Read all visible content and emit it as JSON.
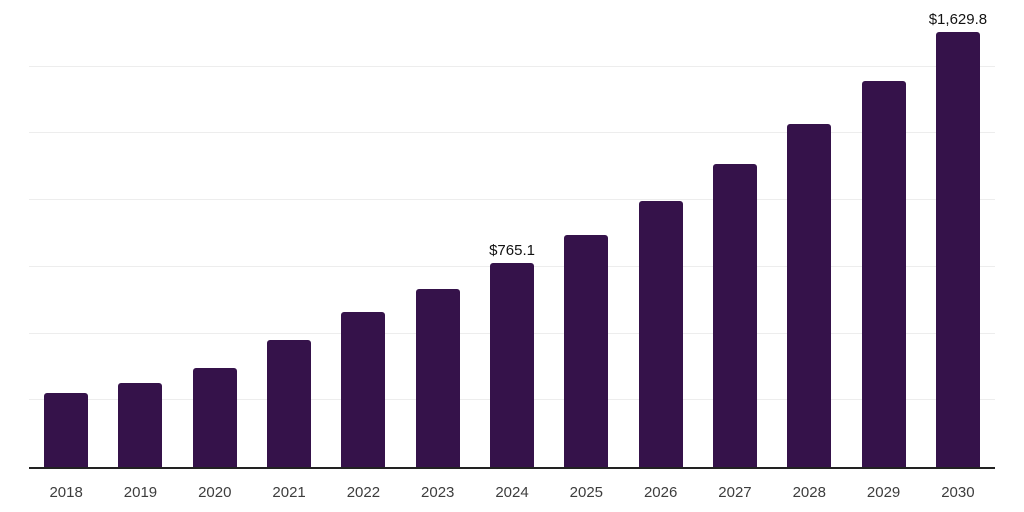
{
  "page": {
    "background": "#ffffff"
  },
  "chart_data": {
    "type": "bar",
    "title": "",
    "xlabel": "",
    "ylabel": "",
    "categories": [
      "2018",
      "2019",
      "2020",
      "2021",
      "2022",
      "2023",
      "2024",
      "2025",
      "2026",
      "2027",
      "2028",
      "2029",
      "2030"
    ],
    "values": [
      277,
      314,
      370,
      475,
      580,
      666,
      765.1,
      868,
      996,
      1134,
      1284,
      1447,
      1629.8
    ],
    "point_labels": [
      "",
      "",
      "",
      "",
      "",
      "",
      "$765.1",
      "",
      "",
      "",
      "",
      "",
      "$1,629.8"
    ],
    "ylim": [
      0,
      1750
    ],
    "grid_step": 250,
    "grid": "horizontal-only",
    "legend": "none",
    "y_axis_tick_labels": "none",
    "bar_color": "#35124A",
    "grid_color": "#ededed",
    "axis_color": "#222222",
    "tick_label_color": "#3d3d3d",
    "data_label_color": "#121212"
  }
}
